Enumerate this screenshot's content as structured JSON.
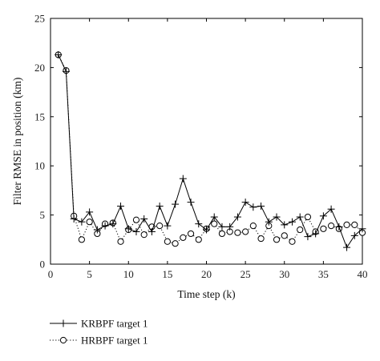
{
  "chart_data": {
    "type": "line",
    "xlabel": "Time step (k)",
    "ylabel": "Filter RMSE in position (km)",
    "xlim": [
      0,
      40
    ],
    "ylim": [
      0,
      25
    ],
    "xticks": [
      0,
      5,
      10,
      15,
      20,
      25,
      30,
      35,
      40
    ],
    "yticks": [
      0,
      5,
      10,
      15,
      20,
      25
    ],
    "grid": false,
    "legend_position": "below-left",
    "x": [
      1,
      2,
      3,
      4,
      5,
      6,
      7,
      8,
      9,
      10,
      11,
      12,
      13,
      14,
      15,
      16,
      17,
      18,
      19,
      20,
      21,
      22,
      23,
      24,
      25,
      26,
      27,
      28,
      29,
      30,
      31,
      32,
      33,
      34,
      35,
      36,
      37,
      38,
      39,
      40
    ],
    "series": [
      {
        "name": "KRBPF target 1",
        "marker": "plus",
        "line": "solid",
        "color": "#000000",
        "values": [
          21.3,
          19.6,
          4.6,
          4.3,
          5.3,
          3.5,
          3.9,
          4.1,
          5.9,
          3.6,
          3.3,
          4.6,
          3.3,
          5.9,
          3.9,
          6.1,
          8.7,
          6.3,
          4.1,
          3.5,
          4.8,
          3.8,
          3.8,
          4.8,
          6.3,
          5.8,
          5.9,
          4.3,
          4.8,
          4.0,
          4.3,
          4.8,
          2.8,
          3.1,
          4.9,
          5.6,
          3.8,
          1.7,
          2.9,
          3.6
        ]
      },
      {
        "name": "HRBPF target 1",
        "marker": "circle",
        "line": "dotted",
        "color": "#000000",
        "values": [
          21.3,
          19.7,
          4.9,
          2.5,
          4.3,
          3.1,
          4.1,
          4.2,
          2.3,
          3.5,
          4.5,
          3.0,
          3.8,
          3.9,
          2.3,
          2.1,
          2.7,
          3.1,
          2.5,
          3.6,
          4.1,
          3.1,
          3.3,
          3.2,
          3.3,
          3.9,
          2.6,
          3.9,
          2.5,
          2.9,
          2.3,
          3.5,
          4.8,
          3.3,
          3.6,
          3.9,
          3.6,
          4.0,
          4.0,
          3.2
        ]
      }
    ]
  }
}
